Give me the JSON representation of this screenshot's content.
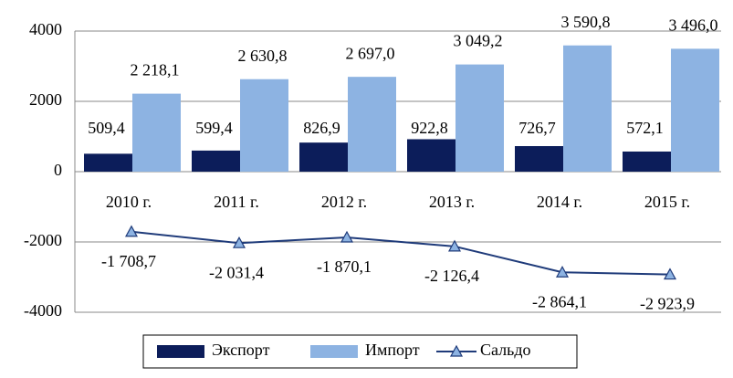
{
  "chart_data": {
    "type": "bar_line",
    "categories": [
      "2010 г.",
      "2011 г.",
      "2012 г.",
      "2013 г.",
      "2014 г.",
      "2015 г."
    ],
    "series": [
      {
        "name": "Экспорт",
        "type": "bar",
        "color": "#0c1d5a",
        "values": [
          509.4,
          599.4,
          826.9,
          922.8,
          726.7,
          572.1
        ],
        "value_labels": [
          "509,4",
          "599,4",
          "826,9",
          "922,8",
          "726,7",
          "572,1"
        ]
      },
      {
        "name": "Импорт",
        "type": "bar",
        "color": "#8db3e2",
        "values": [
          2218.1,
          2630.8,
          2697.0,
          3049.2,
          3590.8,
          3496.0
        ],
        "value_labels": [
          "2 218,1",
          "2 630,8",
          "2 697,0",
          "3 049,2",
          "3 590,8",
          "3 496,0"
        ]
      },
      {
        "name": "Сальдо",
        "type": "line",
        "color": "#1f3b7a",
        "marker_color": "#8db3e2",
        "values": [
          -1708.7,
          -2031.4,
          -1870.1,
          -2126.4,
          -2864.1,
          -2923.9
        ],
        "value_labels": [
          "-1 708,7",
          "-2 031,4",
          "-1 870,1",
          "-2 126,4",
          "-2 864,1",
          "-2 923,9"
        ]
      }
    ],
    "ylim": [
      -4000,
      4000
    ],
    "yticks": [
      -4000,
      -2000,
      0,
      2000,
      4000
    ],
    "grid": true,
    "legend": "bottom"
  }
}
